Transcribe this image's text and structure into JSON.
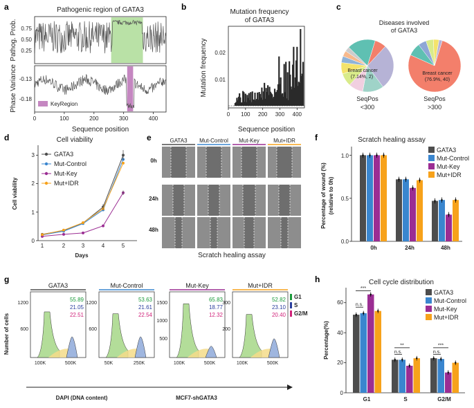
{
  "colors": {
    "gata3": "#4d4d4d",
    "mut_control": "#3a86cf",
    "mut_key": "#9b2d93",
    "mut_idr": "#f7a21b",
    "green_region": "#b9e1a6",
    "key_region": "#c587c1",
    "salmon": "#f37f6b"
  },
  "chart_data": [
    {
      "panel": "a",
      "type": "line",
      "title": "Pathogenic region of GATA3",
      "xlabel": "Sequence position",
      "top_ylabel": "Pathog. Prob.",
      "bottom_ylabel": "Phase Variance",
      "xticks": [
        "0",
        "100",
        "200",
        "300",
        "400"
      ],
      "top_yticks": [
        "0.75",
        "0.50",
        "0.25"
      ],
      "bottom_yticks": [
        "-0.13",
        "-0.18"
      ],
      "top_ylim": [
        0.1,
        0.9
      ],
      "bottom_ylim": [
        -0.205,
        -0.095
      ],
      "xlim": [
        0,
        443
      ],
      "pathogenic_region": [
        258,
        365
      ],
      "key_region_range": [
        312,
        332
      ],
      "legend": "KeyRegion"
    },
    {
      "panel": "b",
      "type": "bar",
      "title": "Mutation frequency",
      "subtitle": "of GATA3",
      "xlabel": "Sequence position",
      "ylabel": "Mutation frequency",
      "xticks": [
        "0",
        "100",
        "200",
        "300",
        "400"
      ],
      "yticks": [
        "0.01",
        "0.02"
      ],
      "xlim": [
        0,
        443
      ],
      "ylim": [
        0,
        0.029
      ]
    },
    {
      "panel": "c",
      "type": "pie",
      "title": "Diseases involved",
      "subtitle": "of GATA3",
      "pies": [
        {
          "label": "SeqPos",
          "sublabel": "<300",
          "highlight": "Breast cancer",
          "highlight_value": "(7.14%, 2)",
          "values": [
            7.14,
            28,
            13,
            9,
            8,
            7,
            4,
            3.5,
            3,
            17.36
          ]
        },
        {
          "label": "SeqPos",
          "sublabel": ">300",
          "highlight": "Breast cancer",
          "highlight_value": "(76.9%, 40)",
          "values": [
            76.9,
            8,
            5,
            4.6,
            3.5,
            2
          ]
        }
      ]
    },
    {
      "panel": "d",
      "type": "line",
      "title": "Cell viability",
      "xlabel": "Days",
      "ylabel": "Cell viability",
      "categories": [
        "1",
        "2",
        "3",
        "4",
        "5"
      ],
      "yticks": [
        "0",
        "1",
        "2",
        "3"
      ],
      "ylim": [
        0,
        3.3
      ],
      "series": [
        {
          "name": "GATA3",
          "values": [
            0.22,
            0.36,
            0.62,
            1.18,
            3.0
          ]
        },
        {
          "name": "Mut-Control",
          "values": [
            0.2,
            0.33,
            0.6,
            1.08,
            2.85
          ]
        },
        {
          "name": "Mut-Key",
          "values": [
            0.15,
            0.22,
            0.27,
            0.52,
            1.68
          ]
        },
        {
          "name": "Mut+IDR",
          "values": [
            0.21,
            0.37,
            0.63,
            1.12,
            2.72
          ]
        }
      ]
    },
    {
      "panel": "f",
      "type": "bar",
      "title": "Scratch healing assay",
      "ylabel": "Percentage of wound (%)",
      "ylabel2": "(relative to 0h)",
      "categories": [
        "0h",
        "24h",
        "48h"
      ],
      "yticks": [
        "0.0",
        "0.5",
        "1.0"
      ],
      "ylim": [
        0,
        1.1
      ],
      "series": [
        {
          "name": "GATA3",
          "values": [
            1.0,
            0.72,
            0.47
          ]
        },
        {
          "name": "Mut-Control",
          "values": [
            1.0,
            0.72,
            0.48
          ]
        },
        {
          "name": "Mut-Key",
          "values": [
            1.0,
            0.62,
            0.31
          ]
        },
        {
          "name": "Mut+IDR",
          "values": [
            1.0,
            0.71,
            0.48
          ]
        }
      ]
    },
    {
      "panel": "h",
      "type": "bar",
      "title": "Cell cycle distribution",
      "ylabel": "Percentage(%)",
      "categories": [
        "G1",
        "S",
        "G2/M"
      ],
      "yticks": [
        "0",
        "20",
        "40",
        "60"
      ],
      "ylim": [
        0,
        70
      ],
      "series": [
        {
          "name": "GATA3",
          "values": [
            52,
            22,
            23
          ]
        },
        {
          "name": "Mut-Control",
          "values": [
            53,
            22,
            22.5
          ]
        },
        {
          "name": "Mut-Key",
          "values": [
            65.5,
            18,
            13.5
          ]
        },
        {
          "name": "Mut+IDR",
          "values": [
            54.5,
            23,
            20
          ]
        }
      ],
      "annotations": [
        "***",
        "n.s.",
        "**",
        "n.s.",
        "***",
        "n.s."
      ]
    },
    {
      "panel": "g",
      "type": "histogram",
      "ylabel": "Number of cells",
      "xlabel": "DAPI (DNA content)",
      "footer": "MCF7-shGATA3",
      "phase_labels": [
        "G1",
        "S",
        "G2/M"
      ],
      "samples": [
        {
          "name": "GATA3",
          "g1": "55.89",
          "s": "21.05",
          "g2m": "22.51",
          "yticks": [
            "1200",
            "600"
          ],
          "xticks": [
            "100K",
            "500K"
          ]
        },
        {
          "name": "Mut-Control",
          "g1": "53.63",
          "s": "21.61",
          "g2m": "22.54",
          "yticks": [
            "1200",
            "600"
          ],
          "xticks": [
            "50K",
            "250K"
          ]
        },
        {
          "name": "Mut-Key",
          "g1": "65.83",
          "s": "18.77",
          "g2m": "12.32",
          "yticks": [
            "1500",
            "1000",
            "500"
          ],
          "xticks": [
            "100K",
            "500K"
          ]
        },
        {
          "name": "Mut+IDR",
          "g1": "52.82",
          "s": "23.10",
          "g2m": "20.40",
          "yticks": [
            "300",
            "200"
          ],
          "xticks": [
            "100K",
            "500K"
          ]
        }
      ]
    }
  ],
  "panel_labels": [
    "a",
    "b",
    "c",
    "d",
    "e",
    "f",
    "g",
    "h"
  ],
  "panel_e": {
    "columns": [
      "GATA3",
      "Mut-Control",
      "Mut-Key",
      "Mut+IDR"
    ],
    "rows": [
      "0h",
      "24h",
      "48h"
    ],
    "caption": "Scratch healing assay"
  }
}
